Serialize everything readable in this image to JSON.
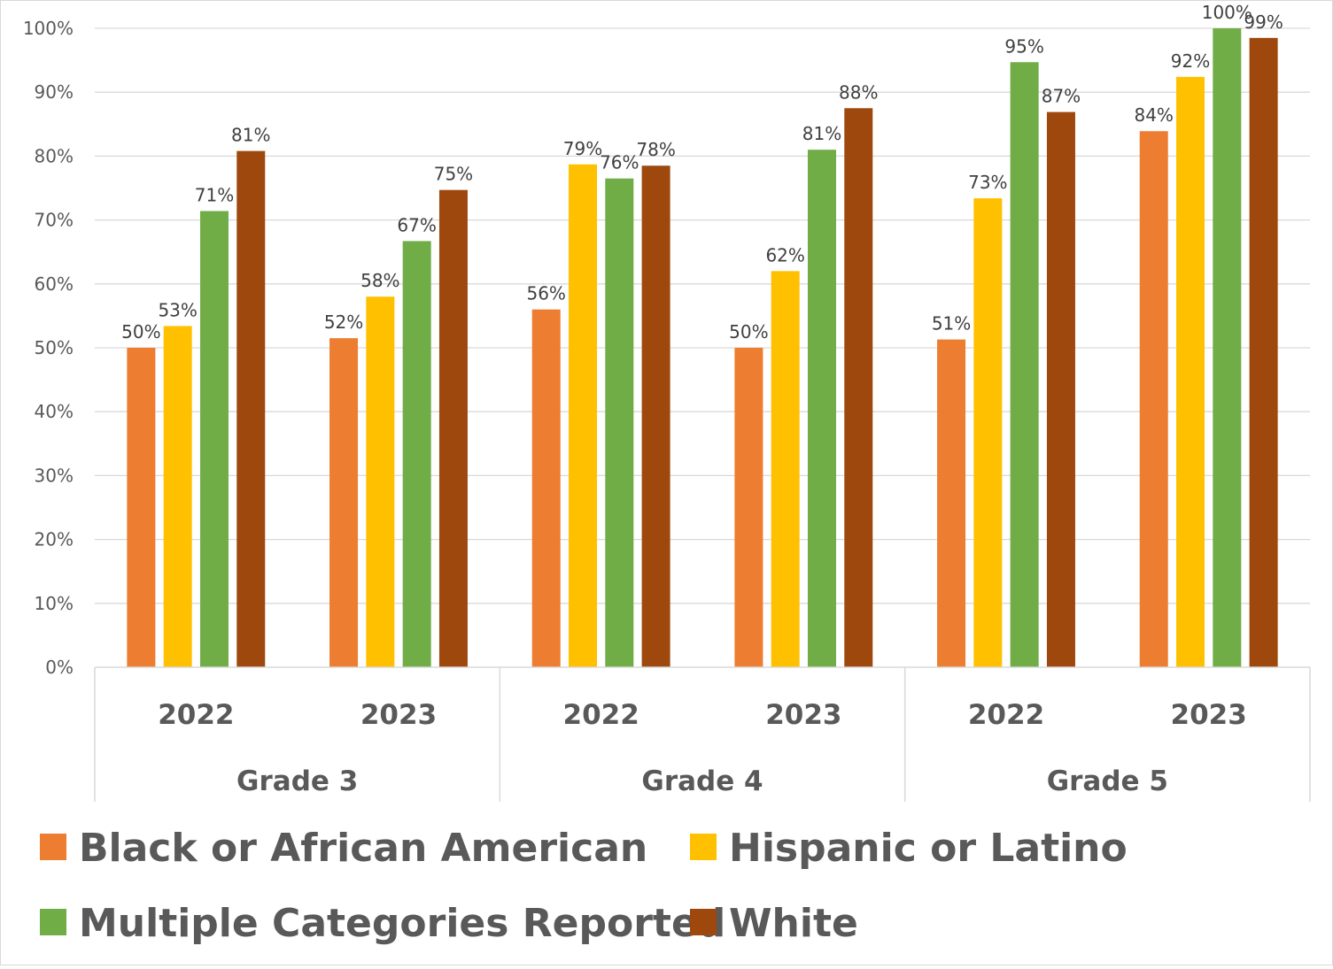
{
  "chart_data": {
    "type": "bar",
    "title": "",
    "xlabel": "",
    "ylabel": "",
    "ylim": [
      0,
      100
    ],
    "yticks": [
      "0%",
      "10%",
      "20%",
      "30%",
      "40%",
      "50%",
      "60%",
      "70%",
      "80%",
      "90%",
      "100%"
    ],
    "yunit": "%",
    "grid": true,
    "legend_position": "bottom",
    "categories": [
      {
        "year": "2022",
        "group": "Grade 3"
      },
      {
        "year": "2023",
        "group": "Grade 3"
      },
      {
        "year": "2022",
        "group": "Grade 4"
      },
      {
        "year": "2023",
        "group": "Grade 4"
      },
      {
        "year": "2022",
        "group": "Grade 5"
      },
      {
        "year": "2023",
        "group": "Grade 5"
      }
    ],
    "groups": [
      "Grade 3",
      "Grade 4",
      "Grade 5"
    ],
    "series": [
      {
        "name": "Black or African American",
        "color": "#ED7D31",
        "values": [
          50,
          51.5,
          56,
          50,
          51.3,
          83.9
        ],
        "labels": [
          "50%",
          "52%",
          "56%",
          "50%",
          "51%",
          "84%"
        ]
      },
      {
        "name": "Hispanic or Latino",
        "color": "#FFC000",
        "values": [
          53.4,
          58,
          78.7,
          62,
          73.4,
          92.4
        ],
        "labels": [
          "53%",
          "58%",
          "79%",
          "62%",
          "73%",
          "92%"
        ]
      },
      {
        "name": "Multiple Categories Reported",
        "color": "#70AD47",
        "values": [
          71.4,
          66.7,
          76.5,
          81,
          94.7,
          100
        ],
        "labels": [
          "71%",
          "67%",
          "76%",
          "81%",
          "95%",
          "100%"
        ]
      },
      {
        "name": "White",
        "color": "#9E480E",
        "values": [
          80.8,
          74.7,
          78.5,
          87.5,
          86.9,
          98.5
        ],
        "labels": [
          "81%",
          "75%",
          "78%",
          "88%",
          "87%",
          "99%"
        ]
      }
    ]
  }
}
